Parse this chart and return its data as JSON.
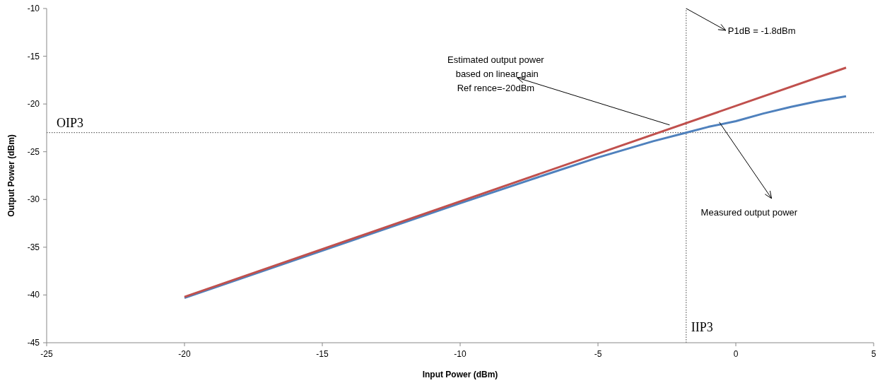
{
  "chart_data": {
    "type": "line",
    "xlabel": "Input Power (dBm)",
    "ylabel": "Output Power (dBm)",
    "xlim": [
      -25,
      5
    ],
    "xticks": [
      -25,
      -20,
      -15,
      -10,
      -5,
      0,
      5
    ],
    "ylim": [
      -45,
      -10
    ],
    "yticks": [
      -45,
      -40,
      -35,
      -30,
      -25,
      -20,
      -15,
      -10
    ],
    "grid": false,
    "marker": "none",
    "line_style": "solid",
    "series": [
      {
        "color": "#4f81bd",
        "x": [
          -20,
          -10,
          -7,
          -5,
          -3,
          -1.8,
          -1,
          0,
          1,
          2,
          3,
          4
        ],
        "values": [
          -40.3,
          -30.4,
          -27.5,
          -25.6,
          -23.9,
          -23.0,
          -22.4,
          -21.8,
          -21.0,
          -20.3,
          -19.7,
          -19.2
        ]
      },
      {
        "color": "#c0504d",
        "x": [
          -20,
          4
        ],
        "values": [
          -40.2,
          -16.2
        ]
      }
    ],
    "ref_lines": [
      {
        "axis": "x",
        "value": -1.8,
        "label": "IIP3",
        "line_style": "dotted",
        "color": "#404040"
      },
      {
        "axis": "y",
        "value": -23,
        "label": "OIP3",
        "line_style": "dotted",
        "color": "#404040"
      }
    ],
    "annotations": [
      {
        "text": "P1dB = -1.8dBm",
        "x": -1.8,
        "y": -10
      },
      {
        "text": "Estimated output power\n based on linear gain\nRef rence=-20dBm",
        "x": -2.4,
        "y": -22.2
      },
      {
        "text": "Measured output power",
        "x": -0.6,
        "y": -21.9
      }
    ]
  }
}
